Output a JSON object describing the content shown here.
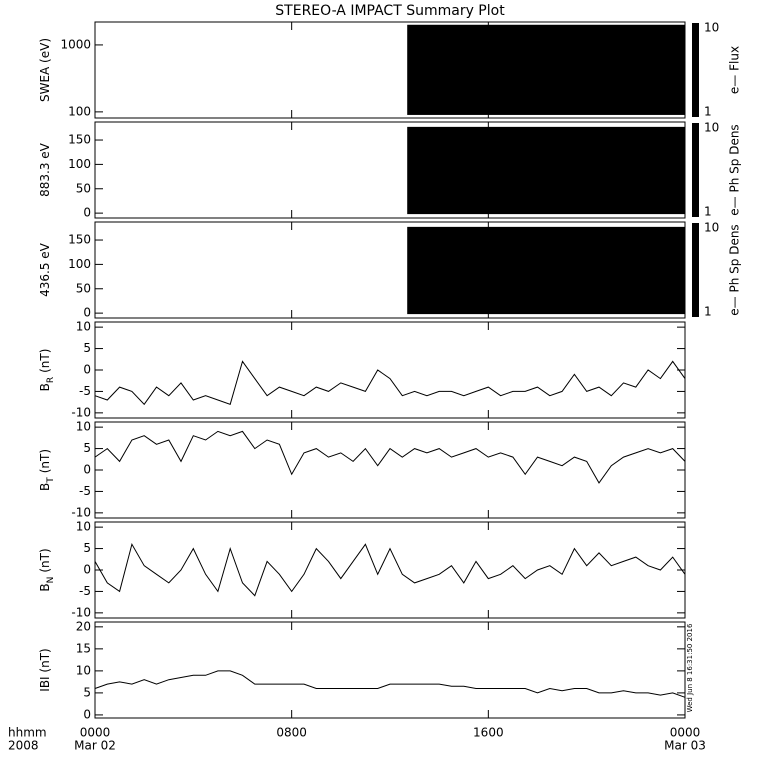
{
  "chart_data": {
    "type": "stacked-panels",
    "title": "STEREO-A IMPACT Summary Plot",
    "xlim": [
      0,
      24
    ],
    "xticks": [
      {
        "value": 0,
        "label": "0000"
      },
      {
        "value": 8,
        "label": "0800"
      },
      {
        "value": 16,
        "label": "1600"
      },
      {
        "value": 24,
        "label": "0000"
      }
    ],
    "xdates": [
      {
        "value": 0,
        "label": "Mar 02"
      },
      {
        "value": 24,
        "label": "Mar 03"
      }
    ],
    "xaxis_labels": [
      "hhmm",
      "2008"
    ],
    "timestamp": "Wed Jun  8 16:31:50 2016",
    "color": "#000000",
    "x": [
      0,
      0.5,
      1,
      1.5,
      2,
      2.5,
      3,
      3.5,
      4,
      4.5,
      5,
      5.5,
      6,
      6.5,
      7,
      7.5,
      8,
      8.5,
      9,
      9.5,
      10,
      10.5,
      11,
      11.5,
      12,
      12.5,
      13,
      13.5,
      14,
      14.5,
      15,
      15.5,
      16,
      16.5,
      17,
      17.5,
      18,
      18.5,
      19,
      19.5,
      20,
      20.5,
      21,
      21.5,
      22,
      22.5,
      23,
      23.5,
      24
    ],
    "panels": [
      {
        "type": "spectrogram",
        "ylabel": "SWEA (eV)",
        "log": true,
        "ylim": [
          81,
          2200
        ],
        "yticks": [
          100,
          1000
        ],
        "data_xrange": [
          12.7,
          24
        ],
        "fill_range": [
          90,
          2000
        ],
        "zlim": [
          1,
          10
        ],
        "zticks": [
          1,
          10
        ],
        "zlabel": "e— Flux"
      },
      {
        "type": "spectrogram",
        "ylabel": "883.3 eV",
        "ylim": [
          -10,
          187
        ],
        "yticks": [
          0,
          50,
          100,
          150
        ],
        "data_xrange": [
          12.7,
          24
        ],
        "fill_range": [
          -2,
          177
        ],
        "zlim": [
          1,
          10
        ],
        "zticks": [
          1,
          10
        ],
        "zlabel": "e— Ph Sp Dens"
      },
      {
        "type": "spectrogram",
        "ylabel": "436.5 eV",
        "ylim": [
          -10,
          187
        ],
        "yticks": [
          0,
          50,
          100,
          150
        ],
        "data_xrange": [
          12.7,
          24
        ],
        "fill_range": [
          -2,
          177
        ],
        "zlim": [
          1,
          10
        ],
        "zticks": [
          1,
          10
        ],
        "zlabel": "e— Ph Sp Dens"
      },
      {
        "type": "line",
        "ylabel": "B",
        "ylabel_sub": "R",
        "ylabel_unit": "(nT)",
        "ylim": [
          -11.2,
          11.2
        ],
        "yticks": [
          -10,
          -5,
          0,
          5,
          10
        ],
        "values": [
          -6,
          -7,
          -4,
          -5,
          -8,
          -4,
          -6,
          -3,
          -7,
          -6,
          -7,
          -8,
          2,
          -2,
          -6,
          -4,
          -5,
          -6,
          -4,
          -5,
          -3,
          -4,
          -5,
          0,
          -2,
          -6,
          -5,
          -6,
          -5,
          -5,
          -6,
          -5,
          -4,
          -6,
          -5,
          -5,
          -4,
          -6,
          -5,
          -1,
          -5,
          -4,
          -6,
          -3,
          -4,
          0,
          -2,
          2,
          -2
        ]
      },
      {
        "type": "line",
        "ylabel": "B",
        "ylabel_sub": "T",
        "ylabel_unit": "(nT)",
        "ylim": [
          -11.2,
          11.2
        ],
        "yticks": [
          -10,
          -5,
          0,
          5,
          10
        ],
        "values": [
          3,
          5,
          2,
          7,
          8,
          6,
          7,
          2,
          8,
          7,
          9,
          8,
          9,
          5,
          7,
          6,
          -1,
          4,
          5,
          3,
          4,
          2,
          5,
          1,
          5,
          3,
          5,
          4,
          5,
          3,
          4,
          5,
          3,
          4,
          3,
          -1,
          3,
          2,
          1,
          3,
          2,
          -3,
          1,
          3,
          4,
          5,
          4,
          5,
          2
        ]
      },
      {
        "type": "line",
        "ylabel": "B",
        "ylabel_sub": "N",
        "ylabel_unit": "(nT)",
        "ylim": [
          -11.2,
          11.2
        ],
        "yticks": [
          -10,
          -5,
          0,
          5,
          10
        ],
        "values": [
          2,
          -3,
          -5,
          6,
          1,
          -1,
          -3,
          0,
          5,
          -1,
          -5,
          5,
          -3,
          -6,
          2,
          -1,
          -5,
          -1,
          5,
          2,
          -2,
          2,
          6,
          -1,
          5,
          -1,
          -3,
          -2,
          -1,
          1,
          -3,
          2,
          -2,
          -1,
          1,
          -2,
          0,
          1,
          -1,
          5,
          1,
          4,
          1,
          2,
          3,
          1,
          0,
          3,
          -1
        ]
      },
      {
        "type": "line",
        "ylabel": "IBI (nT)",
        "ylim": [
          -0.7,
          21.1
        ],
        "yticks": [
          0,
          5,
          10,
          15,
          20
        ],
        "values": [
          6,
          7,
          7.5,
          7,
          8,
          7,
          8,
          8.5,
          9,
          9,
          10,
          10,
          9,
          7,
          7,
          7,
          7,
          7,
          6,
          6,
          6,
          6,
          6,
          6,
          7,
          7,
          7,
          7,
          7,
          6.5,
          6.5,
          6,
          6,
          6,
          6,
          6,
          5,
          6,
          5.5,
          6,
          6,
          5,
          5,
          5.5,
          5,
          5,
          4.5,
          5,
          4
        ]
      }
    ]
  }
}
